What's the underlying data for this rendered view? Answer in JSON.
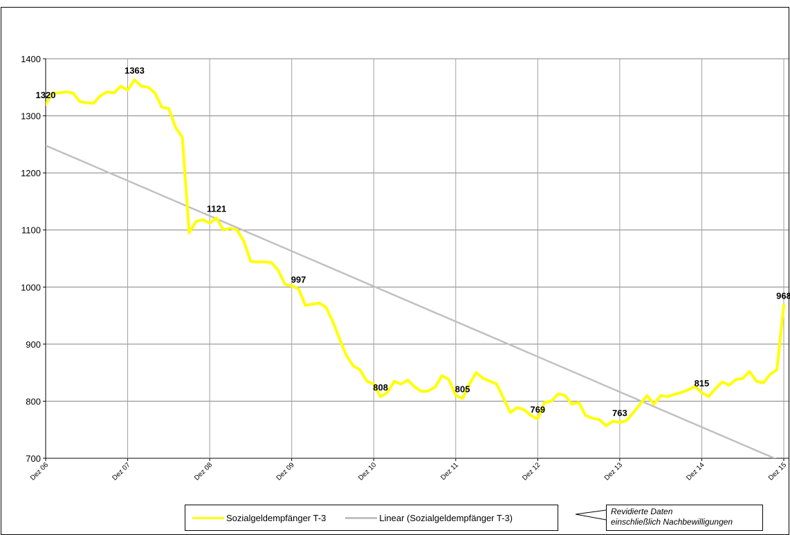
{
  "chart_data": {
    "type": "line",
    "title": "",
    "xlabel": "",
    "ylabel": "",
    "ylim": [
      700,
      1400
    ],
    "yticks": [
      700,
      800,
      900,
      1000,
      1100,
      1200,
      1300,
      1400
    ],
    "grid": true,
    "x_tick_labels": [
      "Dez 06",
      "Dez 07",
      "Dez 08",
      "Dez 09",
      "Dez 10",
      "Dez 11",
      "Dez 12",
      "Dez 13",
      "Dez 14",
      "Dez 15"
    ],
    "xlim": [
      0,
      108
    ],
    "series": [
      {
        "name": "Sozialgeldempfänger T-3",
        "color": "#ffff00",
        "x": [
          0,
          1,
          2,
          3,
          4,
          5,
          6,
          7,
          8,
          9,
          10,
          11,
          12,
          13,
          14,
          15,
          16,
          17,
          18,
          19,
          20,
          21,
          22,
          23,
          24,
          25,
          26,
          27,
          28,
          29,
          30,
          31,
          32,
          33,
          34,
          35,
          36,
          37,
          38,
          39,
          40,
          41,
          42,
          43,
          44,
          45,
          46,
          47,
          48,
          49,
          50,
          51,
          52,
          53,
          54,
          55,
          56,
          57,
          58,
          59,
          60,
          61,
          62,
          63,
          64,
          65,
          66,
          67,
          68,
          69,
          70,
          71,
          72,
          73,
          74,
          75,
          76,
          77,
          78,
          79,
          80,
          81,
          82,
          83,
          84,
          85,
          86,
          87,
          88,
          89,
          90,
          91,
          92,
          93,
          94,
          95,
          96,
          97,
          98,
          99,
          100,
          101,
          102,
          103,
          104,
          105,
          106,
          107,
          108
        ],
        "values": [
          1320,
          1340,
          1340,
          1342,
          1340,
          1325,
          1323,
          1322,
          1335,
          1342,
          1340,
          1352,
          1345,
          1363,
          1352,
          1350,
          1340,
          1315,
          1313,
          1280,
          1262,
          1095,
          1115,
          1118,
          1112,
          1121,
          1100,
          1103,
          1100,
          1080,
          1045,
          1044,
          1044,
          1043,
          1030,
          1005,
          1002,
          997,
          968,
          970,
          972,
          965,
          940,
          910,
          880,
          862,
          855,
          835,
          830,
          808,
          815,
          835,
          830,
          837,
          825,
          817,
          818,
          825,
          845,
          838,
          810,
          805,
          830,
          850,
          840,
          835,
          830,
          805,
          780,
          789,
          785,
          775,
          769,
          798,
          800,
          813,
          810,
          795,
          798,
          775,
          770,
          768,
          757,
          765,
          763,
          766,
          780,
          795,
          810,
          795,
          810,
          808,
          812,
          815,
          820,
          826,
          815,
          808,
          822,
          834,
          828,
          838,
          840,
          852,
          835,
          832,
          847,
          855,
          968
        ],
        "point_labels": [
          {
            "x": 0,
            "y": 1320,
            "text": "1320"
          },
          {
            "x": 13,
            "y": 1363,
            "text": "1363"
          },
          {
            "x": 25,
            "y": 1121,
            "text": "1121"
          },
          {
            "x": 37,
            "y": 997,
            "text": "997"
          },
          {
            "x": 49,
            "y": 808,
            "text": "808"
          },
          {
            "x": 61,
            "y": 805,
            "text": "805"
          },
          {
            "x": 72,
            "y": 769,
            "text": "769"
          },
          {
            "x": 84,
            "y": 763,
            "text": "763"
          },
          {
            "x": 96,
            "y": 815,
            "text": "815"
          },
          {
            "x": 108,
            "y": 968,
            "text": "968"
          }
        ]
      },
      {
        "name": "Linear (Sozialgeldempfänger T-3)",
        "color": "#c0c0c0",
        "x": [
          0,
          108
        ],
        "values": [
          1248,
          693
        ]
      }
    ],
    "legend": {
      "placement": "bottom",
      "items": [
        "Sozialgeldempfänger T-3",
        "Linear (Sozialgeldempfänger T-3)"
      ]
    },
    "annotation": {
      "line1": "Revidierte Daten",
      "line2": "einschließlich  Nachbewilligungen"
    }
  }
}
